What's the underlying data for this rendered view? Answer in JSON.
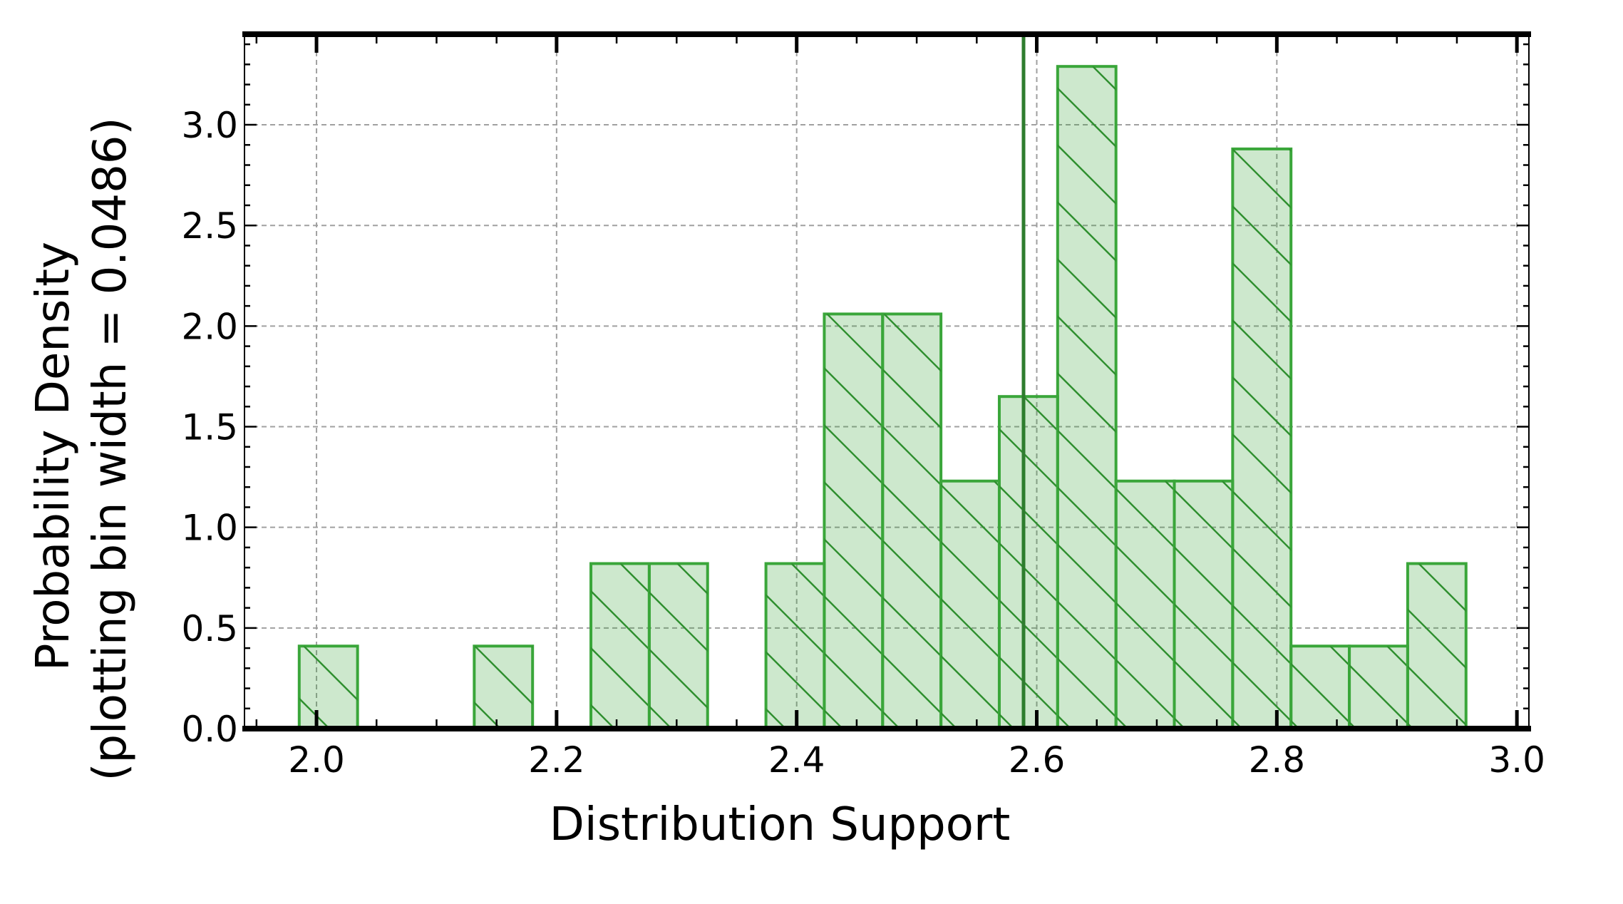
{
  "chart_data": {
    "type": "bar",
    "histogram": true,
    "bin_width": 0.0486,
    "bins": [
      {
        "left": 1.9856,
        "right": 2.0342,
        "density": 0.41
      },
      {
        "left": 2.1314,
        "right": 2.18,
        "density": 0.41
      },
      {
        "left": 2.2286,
        "right": 2.2772,
        "density": 0.82
      },
      {
        "left": 2.2772,
        "right": 2.3258,
        "density": 0.82
      },
      {
        "left": 2.3744,
        "right": 2.423,
        "density": 0.82
      },
      {
        "left": 2.423,
        "right": 2.4716,
        "density": 2.06
      },
      {
        "left": 2.4716,
        "right": 2.5202,
        "density": 2.06
      },
      {
        "left": 2.5202,
        "right": 2.5688,
        "density": 1.23
      },
      {
        "left": 2.5688,
        "right": 2.6174,
        "density": 1.65
      },
      {
        "left": 2.6174,
        "right": 2.666,
        "density": 3.29
      },
      {
        "left": 2.666,
        "right": 2.7146,
        "density": 1.23
      },
      {
        "left": 2.7146,
        "right": 2.7632,
        "density": 1.23
      },
      {
        "left": 2.7632,
        "right": 2.8118,
        "density": 2.88
      },
      {
        "left": 2.8118,
        "right": 2.8604,
        "density": 0.41
      },
      {
        "left": 2.8604,
        "right": 2.909,
        "density": 0.41
      },
      {
        "left": 2.909,
        "right": 2.9576,
        "density": 0.82
      }
    ],
    "vertical_line_x": 2.589,
    "xlim": [
      1.94,
      3.01
    ],
    "ylim": [
      0.0,
      3.45
    ],
    "x_ticks": [
      "2.0",
      "2.2",
      "2.4",
      "2.6",
      "2.8",
      "3.0"
    ],
    "x_tick_values": [
      2.0,
      2.2,
      2.4,
      2.6,
      2.8,
      3.0
    ],
    "y_ticks": [
      "0.0",
      "0.5",
      "1.0",
      "1.5",
      "2.0",
      "2.5",
      "3.0"
    ],
    "y_tick_values": [
      0.0,
      0.5,
      1.0,
      1.5,
      2.0,
      2.5,
      3.0
    ],
    "xlabel": "Distribution Support",
    "ylabel_line1": "Probability Density",
    "ylabel_line2": "(plotting bin width = 0.0486)",
    "grid": true,
    "color": "#2ca02c"
  }
}
